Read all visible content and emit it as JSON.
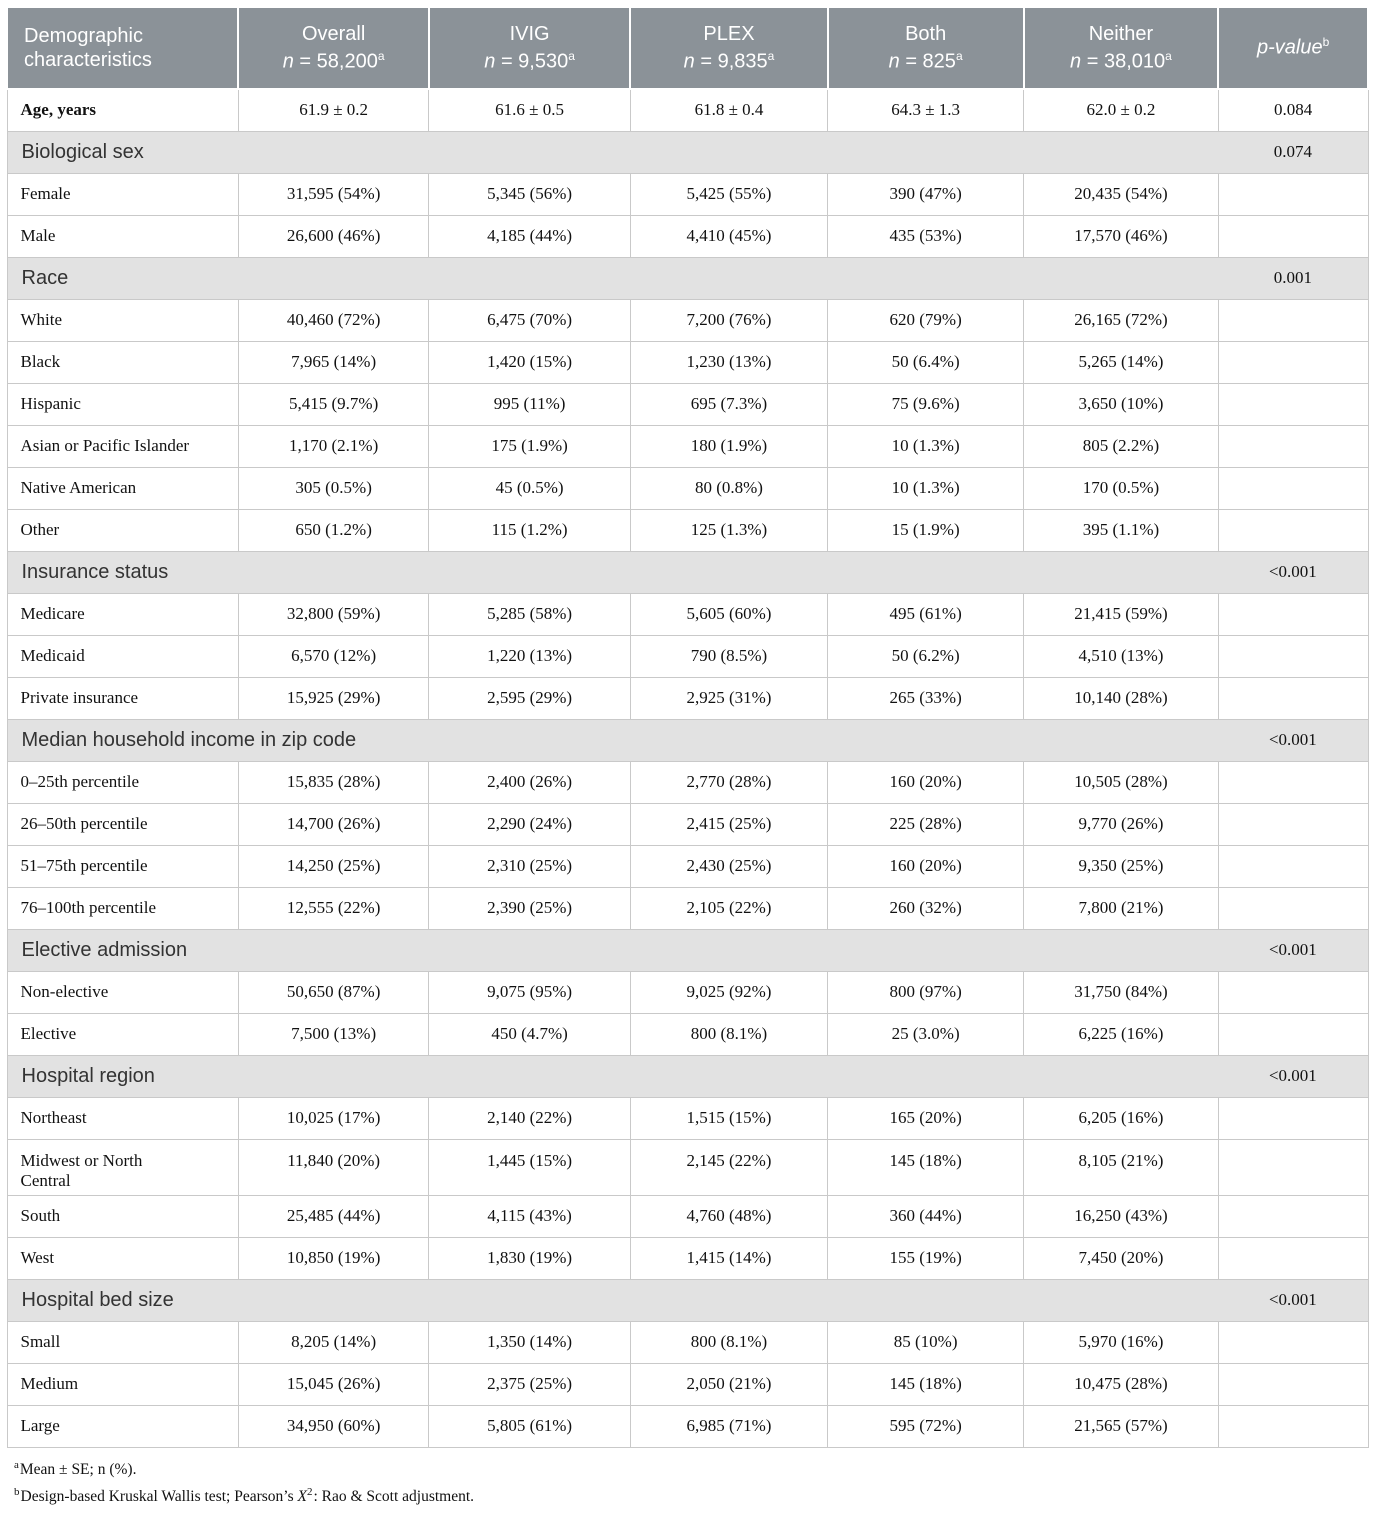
{
  "colors": {
    "header_bg": "#8b9298",
    "section_bg": "#e2e2e2",
    "border": "#c9c9c9",
    "header_text": "#ffffff"
  },
  "table": {
    "columns": [
      {
        "title": "Demographic characteristics"
      },
      {
        "title": "Overall",
        "n_prefix": "n",
        "n_rest": " = 58,200",
        "sup": "a"
      },
      {
        "title": "IVIG",
        "n_prefix": "n",
        "n_rest": " = 9,530",
        "sup": "a"
      },
      {
        "title": "PLEX",
        "n_prefix": "n",
        "n_rest": " = 9,835",
        "sup": "a"
      },
      {
        "title": "Both",
        "n_prefix": "n",
        "n_rest": " = 825",
        "sup": "a"
      },
      {
        "title": "Neither",
        "n_prefix": "n",
        "n_rest": " = 38,010",
        "sup": "a"
      },
      {
        "title": "p-value",
        "sup": "b",
        "italic": true
      }
    ],
    "age_row": {
      "label": "Age, years",
      "values": [
        "61.9 ± 0.2",
        "61.6 ± 0.5",
        "61.8 ± 0.4",
        "64.3 ± 1.3",
        "62.0 ± 0.2"
      ],
      "p_value": "0.084"
    },
    "sections": [
      {
        "name": "Biological sex",
        "p_value": "0.074",
        "rows": [
          {
            "label": "Female",
            "values": [
              "31,595 (54%)",
              "5,345 (56%)",
              "5,425 (55%)",
              "390 (47%)",
              "20,435 (54%)"
            ]
          },
          {
            "label": "Male",
            "values": [
              "26,600 (46%)",
              "4,185 (44%)",
              "4,410 (45%)",
              "435 (53%)",
              "17,570 (46%)"
            ]
          }
        ]
      },
      {
        "name": "Race",
        "p_value": "0.001",
        "rows": [
          {
            "label": "White",
            "values": [
              "40,460 (72%)",
              "6,475 (70%)",
              "7,200 (76%)",
              "620 (79%)",
              "26,165 (72%)"
            ]
          },
          {
            "label": "Black",
            "values": [
              "7,965 (14%)",
              "1,420 (15%)",
              "1,230 (13%)",
              "50 (6.4%)",
              "5,265 (14%)"
            ]
          },
          {
            "label": "Hispanic",
            "values": [
              "5,415 (9.7%)",
              "995 (11%)",
              "695 (7.3%)",
              "75 (9.6%)",
              "3,650 (10%)"
            ]
          },
          {
            "label": "Asian or Pacific Islander",
            "values": [
              "1,170 (2.1%)",
              "175 (1.9%)",
              "180 (1.9%)",
              "10 (1.3%)",
              "805 (2.2%)"
            ]
          },
          {
            "label": "Native American",
            "values": [
              "305 (0.5%)",
              "45 (0.5%)",
              "80 (0.8%)",
              "10 (1.3%)",
              "170 (0.5%)"
            ]
          },
          {
            "label": "Other",
            "values": [
              "650 (1.2%)",
              "115 (1.2%)",
              "125 (1.3%)",
              "15 (1.9%)",
              "395 (1.1%)"
            ]
          }
        ]
      },
      {
        "name": "Insurance status",
        "p_value": "<0.001",
        "rows": [
          {
            "label": "Medicare",
            "values": [
              "32,800 (59%)",
              "5,285 (58%)",
              "5,605 (60%)",
              "495 (61%)",
              "21,415 (59%)"
            ]
          },
          {
            "label": "Medicaid",
            "values": [
              "6,570 (12%)",
              "1,220 (13%)",
              "790 (8.5%)",
              "50 (6.2%)",
              "4,510 (13%)"
            ]
          },
          {
            "label": "Private insurance",
            "values": [
              "15,925 (29%)",
              "2,595 (29%)",
              "2,925 (31%)",
              "265 (33%)",
              "10,140 (28%)"
            ]
          }
        ]
      },
      {
        "name": "Median household income in zip code",
        "p_value": "<0.001",
        "rows": [
          {
            "label": "0–25th percentile",
            "values": [
              "15,835 (28%)",
              "2,400 (26%)",
              "2,770 (28%)",
              "160 (20%)",
              "10,505 (28%)"
            ]
          },
          {
            "label": "26–50th percentile",
            "values": [
              "14,700 (26%)",
              "2,290 (24%)",
              "2,415 (25%)",
              "225 (28%)",
              "9,770 (26%)"
            ]
          },
          {
            "label": "51–75th percentile",
            "values": [
              "14,250 (25%)",
              "2,310 (25%)",
              "2,430 (25%)",
              "160 (20%)",
              "9,350 (25%)"
            ]
          },
          {
            "label": "76–100th percentile",
            "values": [
              "12,555 (22%)",
              "2,390 (25%)",
              "2,105 (22%)",
              "260 (32%)",
              "7,800 (21%)"
            ]
          }
        ]
      },
      {
        "name": "Elective admission",
        "p_value": "<0.001",
        "rows": [
          {
            "label": "Non-elective",
            "values": [
              "50,650 (87%)",
              "9,075 (95%)",
              "9,025 (92%)",
              "800 (97%)",
              "31,750 (84%)"
            ]
          },
          {
            "label": "Elective",
            "values": [
              "7,500 (13%)",
              "450 (4.7%)",
              "800 (8.1%)",
              "25 (3.0%)",
              "6,225 (16%)"
            ]
          }
        ]
      },
      {
        "name": "Hospital region",
        "p_value": "<0.001",
        "rows": [
          {
            "label": "Northeast",
            "values": [
              "10,025 (17%)",
              "2,140 (22%)",
              "1,515 (15%)",
              "165 (20%)",
              "6,205 (16%)"
            ]
          },
          {
            "label": "Midwest or North\nCentral",
            "values": [
              "11,840 (20%)",
              "1,445 (15%)",
              "2,145 (22%)",
              "145 (18%)",
              "8,105 (21%)"
            ]
          },
          {
            "label": "South",
            "values": [
              "25,485 (44%)",
              "4,115 (43%)",
              "4,760 (48%)",
              "360 (44%)",
              "16,250 (43%)"
            ]
          },
          {
            "label": "West",
            "values": [
              "10,850 (19%)",
              "1,830 (19%)",
              "1,415 (14%)",
              "155 (19%)",
              "7,450 (20%)"
            ]
          }
        ]
      },
      {
        "name": "Hospital bed size",
        "p_value": "<0.001",
        "rows": [
          {
            "label": "Small",
            "values": [
              "8,205 (14%)",
              "1,350 (14%)",
              "800 (8.1%)",
              "85 (10%)",
              "5,970 (16%)"
            ]
          },
          {
            "label": "Medium",
            "values": [
              "15,045 (26%)",
              "2,375 (25%)",
              "2,050 (21%)",
              "145 (18%)",
              "10,475 (28%)"
            ]
          },
          {
            "label": "Large",
            "values": [
              "34,950 (60%)",
              "5,805 (61%)",
              "6,985 (71%)",
              "595 (72%)",
              "21,565 (57%)"
            ]
          }
        ]
      }
    ]
  },
  "footnotes": [
    {
      "sup": "a",
      "segments": [
        {
          "t": "Mean ± SE; n (%)."
        }
      ]
    },
    {
      "sup": "b",
      "segments": [
        {
          "t": "Design-based Kruskal Wallis test; Pearson’s "
        },
        {
          "t": "X",
          "style": "italic"
        },
        {
          "t": "2",
          "style": "sup"
        },
        {
          "t": ": Rao & Scott adjustment."
        }
      ]
    }
  ]
}
